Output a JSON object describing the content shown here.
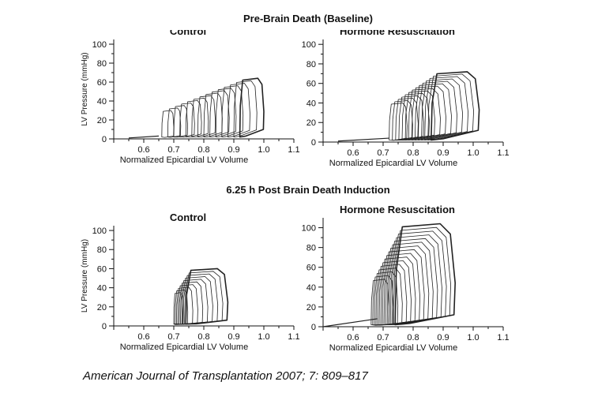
{
  "figure": {
    "top_section_title": "Pre-Brain Death (Baseline)",
    "bottom_section_title": "6.25 h Post Brain Death Induction",
    "citation": "American Journal of Transplantation 2007; 7: 809–817",
    "line_color": "#222222"
  },
  "chart_data": [
    {
      "type": "line",
      "title": "Control",
      "xlabel": "Normalized Epicardial LV Volume",
      "ylabel": "LV Pressure (mmHg)",
      "xticks": [
        "0.6",
        "0.7",
        "0.8",
        "0.9",
        "1.0",
        "1.1"
      ],
      "yticks": [
        "0",
        "20",
        "40",
        "60",
        "80",
        "100"
      ],
      "xlim": [
        0.5,
        1.1
      ],
      "ylim": [
        0,
        105
      ],
      "loops": {
        "count": 14,
        "vmin_start": 0.92,
        "vmin_end": 0.66,
        "vmax_start": 1.0,
        "vmax_end": 0.7,
        "pmax_start": 64,
        "pmax_end": 30,
        "edp_start": 10,
        "edp_end": 3
      },
      "baseline_segment": [
        [
          0.55,
          1
        ],
        [
          0.65,
          3
        ]
      ]
    },
    {
      "type": "line",
      "title": "Hormone Resuscitation",
      "xlabel": "Normalized Epicardial LV Volume",
      "ylabel": "",
      "xticks": [
        "0.6",
        "0.7",
        "0.8",
        "0.9",
        "1.0",
        "1.1"
      ],
      "yticks": [
        "0",
        "20",
        "40",
        "60",
        "80",
        "100"
      ],
      "xlim": [
        0.5,
        1.1
      ],
      "ylim": [
        0,
        105
      ],
      "loops": {
        "count": 14,
        "vmin_start": 0.86,
        "vmin_end": 0.72,
        "vmax_start": 1.02,
        "vmax_end": 0.78,
        "pmax_start": 72,
        "pmax_end": 40,
        "edp_start": 12,
        "edp_end": 4
      },
      "baseline_segment": [
        [
          0.55,
          1
        ],
        [
          0.72,
          4
        ]
      ]
    },
    {
      "type": "line",
      "title": "Control",
      "xlabel": "Normalized Epicardial LV Volume",
      "ylabel": "LV Pressure (mmHg)",
      "xticks": [
        "0.6",
        "0.7",
        "0.8",
        "0.9",
        "1.0",
        "1.1"
      ],
      "yticks": [
        "0",
        "20",
        "40",
        "60",
        "80",
        "100"
      ],
      "xlim": [
        0.5,
        1.1
      ],
      "ylim": [
        0,
        105
      ],
      "loops": {
        "count": 10,
        "vmin_start": 0.74,
        "vmin_end": 0.7,
        "vmax_start": 0.88,
        "vmax_end": 0.73,
        "pmax_start": 60,
        "pmax_end": 35,
        "edp_start": 6,
        "edp_end": 2
      },
      "baseline_segment": [
        [
          0.7,
          2
        ],
        [
          0.72,
          2
        ]
      ]
    },
    {
      "type": "line",
      "title": "Hormone Resuscitation",
      "xlabel": "Normalized Epicardial LV Volume",
      "ylabel": "",
      "xticks": [
        "0.6",
        "0.7",
        "0.8",
        "0.9",
        "1.0",
        "1.1"
      ],
      "yticks": [
        "0",
        "20",
        "40",
        "60",
        "80",
        "100"
      ],
      "xlim": [
        0.5,
        1.1
      ],
      "ylim": [
        0,
        110
      ],
      "loops": {
        "count": 16,
        "vmin_start": 0.74,
        "vmin_end": 0.66,
        "vmax_start": 0.94,
        "vmax_end": 0.72,
        "pmax_start": 104,
        "pmax_end": 48,
        "edp_start": 12,
        "edp_end": 2
      },
      "baseline_segment": [
        [
          0.5,
          0
        ],
        [
          0.68,
          8
        ]
      ]
    }
  ]
}
